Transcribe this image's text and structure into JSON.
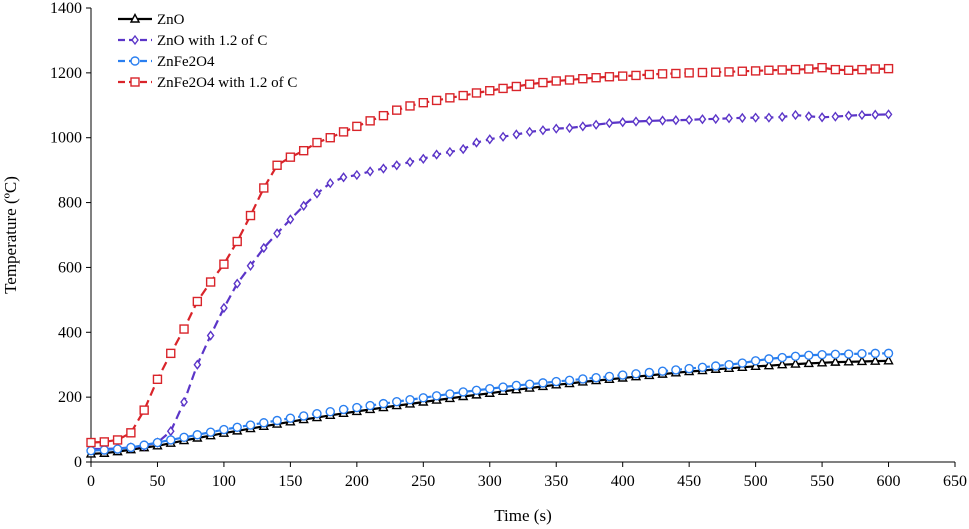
{
  "chart_data": {
    "type": "line",
    "title": "",
    "xlabel": "Time (s)",
    "ylabel": "Temperature (ºC)",
    "xlim": [
      0,
      650
    ],
    "ylim": [
      0,
      1400
    ],
    "xticks": [
      0,
      50,
      100,
      150,
      200,
      250,
      300,
      350,
      400,
      450,
      500,
      550,
      600,
      650
    ],
    "yticks": [
      0,
      200,
      400,
      600,
      800,
      1000,
      1200,
      1400
    ],
    "grid": false,
    "legend": "top-left",
    "series": [
      {
        "name": "ZnO",
        "color": "#000000",
        "marker": "triangle",
        "dashed": false,
        "x": [
          0,
          10,
          20,
          30,
          40,
          50,
          60,
          70,
          80,
          90,
          100,
          110,
          120,
          130,
          140,
          150,
          160,
          170,
          180,
          190,
          200,
          210,
          220,
          230,
          240,
          250,
          260,
          270,
          280,
          290,
          300,
          310,
          320,
          330,
          340,
          350,
          360,
          370,
          380,
          390,
          400,
          410,
          420,
          430,
          440,
          450,
          460,
          470,
          480,
          490,
          500,
          510,
          520,
          530,
          540,
          550,
          560,
          570,
          580,
          590,
          600
        ],
        "y": [
          25,
          27,
          32,
          38,
          44,
          50,
          58,
          66,
          74,
          81,
          89,
          96,
          103,
          110,
          117,
          124,
          131,
          137,
          144,
          150,
          156,
          162,
          168,
          174,
          179,
          185,
          191,
          196,
          202,
          207,
          212,
          218,
          223,
          228,
          233,
          238,
          242,
          247,
          251,
          255,
          259,
          263,
          267,
          271,
          275,
          279,
          282,
          286,
          289,
          292,
          295,
          297,
          300,
          302,
          304,
          306,
          308,
          309,
          310,
          311,
          312
        ]
      },
      {
        "name": "ZnO with 1.2  of C",
        "color": "#5b35c8",
        "marker": "diamond",
        "dashed": true,
        "x": [
          0,
          10,
          20,
          30,
          40,
          50,
          60,
          70,
          80,
          90,
          100,
          110,
          120,
          130,
          140,
          150,
          160,
          170,
          180,
          190,
          200,
          210,
          220,
          230,
          240,
          250,
          260,
          270,
          280,
          290,
          300,
          310,
          320,
          330,
          340,
          350,
          360,
          370,
          380,
          390,
          400,
          410,
          420,
          430,
          440,
          450,
          460,
          470,
          480,
          490,
          500,
          510,
          520,
          530,
          540,
          550,
          560,
          570,
          580,
          590,
          600
        ],
        "y": [
          40,
          40,
          42,
          45,
          50,
          60,
          95,
          185,
          300,
          390,
          475,
          550,
          605,
          660,
          705,
          748,
          790,
          828,
          860,
          878,
          885,
          896,
          905,
          915,
          925,
          935,
          948,
          956,
          965,
          985,
          995,
          1003,
          1010,
          1018,
          1023,
          1028,
          1030,
          1035,
          1040,
          1045,
          1048,
          1050,
          1052,
          1053,
          1054,
          1055,
          1057,
          1058,
          1060,
          1061,
          1062,
          1062,
          1064,
          1070,
          1066,
          1063,
          1065,
          1068,
          1070,
          1071,
          1072
        ]
      },
      {
        "name": "ZnFe2O4",
        "color": "#2a7ff0",
        "marker": "circle",
        "dashed": true,
        "x": [
          0,
          10,
          20,
          30,
          40,
          50,
          60,
          70,
          80,
          90,
          100,
          110,
          120,
          130,
          140,
          150,
          160,
          170,
          180,
          190,
          200,
          210,
          220,
          230,
          240,
          250,
          260,
          270,
          280,
          290,
          300,
          310,
          320,
          330,
          340,
          350,
          360,
          370,
          380,
          390,
          400,
          410,
          420,
          430,
          440,
          450,
          460,
          470,
          480,
          490,
          500,
          510,
          520,
          530,
          540,
          550,
          560,
          570,
          580,
          590,
          600
        ],
        "y": [
          35,
          37,
          40,
          45,
          52,
          60,
          68,
          76,
          84,
          92,
          100,
          107,
          114,
          121,
          128,
          135,
          142,
          149,
          155,
          162,
          168,
          174,
          180,
          186,
          192,
          198,
          204,
          210,
          216,
          221,
          226,
          231,
          236,
          240,
          244,
          248,
          252,
          256,
          260,
          264,
          268,
          272,
          276,
          280,
          284,
          288,
          292,
          296,
          300,
          305,
          312,
          318,
          322,
          326,
          329,
          331,
          332,
          333,
          334,
          335,
          335
        ]
      },
      {
        "name": "ZnFe2O4 with 1.2 of C",
        "color": "#d9242a",
        "marker": "square",
        "dashed": true,
        "x": [
          0,
          10,
          20,
          30,
          40,
          50,
          60,
          70,
          80,
          90,
          100,
          110,
          120,
          130,
          140,
          150,
          160,
          170,
          180,
          190,
          200,
          210,
          220,
          230,
          240,
          250,
          260,
          270,
          280,
          290,
          300,
          310,
          320,
          330,
          340,
          350,
          360,
          370,
          380,
          390,
          400,
          410,
          420,
          430,
          440,
          450,
          460,
          470,
          480,
          490,
          500,
          510,
          520,
          530,
          540,
          550,
          560,
          570,
          580,
          590,
          600
        ],
        "y": [
          60,
          62,
          68,
          90,
          160,
          255,
          335,
          410,
          495,
          555,
          610,
          680,
          760,
          845,
          915,
          940,
          960,
          985,
          1000,
          1018,
          1035,
          1052,
          1068,
          1085,
          1098,
          1108,
          1115,
          1123,
          1130,
          1138,
          1145,
          1152,
          1158,
          1165,
          1170,
          1175,
          1178,
          1182,
          1185,
          1188,
          1190,
          1192,
          1195,
          1197,
          1198,
          1200,
          1201,
          1202,
          1203,
          1205,
          1206,
          1208,
          1209,
          1210,
          1212,
          1216,
          1210,
          1208,
          1210,
          1212,
          1213
        ]
      }
    ]
  }
}
